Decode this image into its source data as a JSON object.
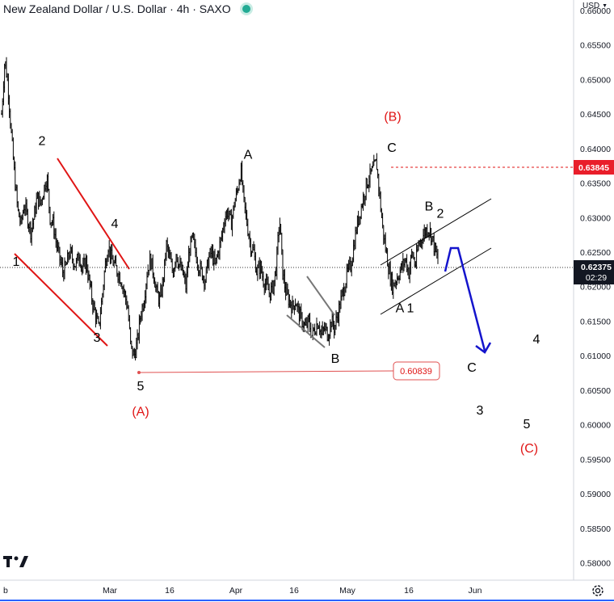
{
  "header": {
    "title": "New Zealand Dollar / U.S. Dollar · 4h · SAXO",
    "currency": "USD"
  },
  "price_labels": {
    "last_price": "0.62375",
    "countdown": "02:29",
    "high_line": "0.63845",
    "low_box": "0.60839"
  },
  "colors": {
    "red": "#e01515",
    "blue": "#1414cc",
    "candle": "#000000",
    "badge_red": "#e91e2a",
    "last_price_bg": "#131722"
  },
  "chart_data": {
    "type": "line",
    "x_ticks": [
      "b",
      "Mar",
      "16",
      "Apr",
      "16",
      "May",
      "16",
      "Jun"
    ],
    "y_ticks": [
      "0.66000",
      "0.65500",
      "0.65000",
      "0.64500",
      "0.64000",
      "0.63500",
      "0.63000",
      "0.62500",
      "0.62000",
      "0.61500",
      "0.61000",
      "0.60500",
      "0.60000",
      "0.59500",
      "0.59000",
      "0.58500",
      "0.58000"
    ],
    "ylim": [
      0.5775,
      0.6615
    ],
    "xlim": [
      0,
      710
    ],
    "series": [
      {
        "values_x": [
          2,
          6,
          10,
          14,
          18,
          22,
          26,
          30,
          34,
          38,
          42,
          46,
          50,
          54,
          58,
          62,
          66,
          70,
          74,
          78,
          82,
          86,
          90,
          94,
          98,
          102,
          106,
          110,
          114,
          118,
          122,
          126,
          130,
          134,
          138,
          142,
          146,
          150,
          154,
          158,
          162,
          166,
          170,
          174,
          178,
          182,
          186,
          190,
          194,
          198,
          202,
          206,
          210,
          214,
          218,
          222,
          226,
          230,
          234,
          238,
          242,
          246,
          250,
          254,
          258,
          262,
          266,
          270,
          274,
          278,
          282,
          286,
          290,
          294,
          298,
          302,
          306,
          310,
          314,
          318,
          322,
          326,
          330,
          334,
          338,
          342,
          346,
          350,
          354,
          358,
          362,
          366,
          370,
          374,
          378,
          382,
          386,
          390,
          394,
          398,
          402,
          406,
          410,
          414,
          418,
          422,
          426,
          430,
          434,
          438,
          442,
          446,
          450,
          454,
          458,
          462,
          466,
          470,
          474,
          478,
          482,
          486,
          490,
          494,
          498,
          502,
          506,
          510,
          514,
          518,
          522,
          526,
          530,
          534,
          538,
          542
        ],
        "values": [
          0.645,
          0.653,
          0.649,
          0.642,
          0.636,
          0.631,
          0.629,
          0.632,
          0.63,
          0.628,
          0.63,
          0.633,
          0.632,
          0.634,
          0.636,
          0.63,
          0.629,
          0.626,
          0.624,
          0.622,
          0.623,
          0.625,
          0.624,
          0.623,
          0.625,
          0.622,
          0.624,
          0.621,
          0.618,
          0.616,
          0.614,
          0.618,
          0.623,
          0.626,
          0.624,
          0.623,
          0.622,
          0.621,
          0.619,
          0.617,
          0.611,
          0.61,
          0.612,
          0.616,
          0.618,
          0.622,
          0.624,
          0.622,
          0.619,
          0.618,
          0.621,
          0.626,
          0.624,
          0.622,
          0.625,
          0.623,
          0.622,
          0.62,
          0.625,
          0.627,
          0.625,
          0.623,
          0.622,
          0.621,
          0.624,
          0.625,
          0.623,
          0.625,
          0.627,
          0.63,
          0.631,
          0.629,
          0.632,
          0.634,
          0.637,
          0.632,
          0.629,
          0.626,
          0.625,
          0.622,
          0.623,
          0.621,
          0.62,
          0.619,
          0.62,
          0.623,
          0.63,
          0.622,
          0.619,
          0.618,
          0.617,
          0.618,
          0.616,
          0.615,
          0.614,
          0.615,
          0.613,
          0.614,
          0.615,
          0.613,
          0.614,
          0.613,
          0.615,
          0.614,
          0.616,
          0.618,
          0.62,
          0.622,
          0.623,
          0.626,
          0.629,
          0.631,
          0.633,
          0.635,
          0.636,
          0.637,
          0.638,
          0.633,
          0.628,
          0.625,
          0.622,
          0.62,
          0.621,
          0.622,
          0.623,
          0.624,
          0.622,
          0.625,
          0.623,
          0.626,
          0.627,
          0.628,
          0.6285,
          0.6275,
          0.6255,
          0.6237
        ],
        "name": ""
      }
    ],
    "annotations": [
      {
        "text": "1",
        "color": "black",
        "x": 20,
        "y": 0.623
      },
      {
        "text": "2",
        "color": "black",
        "x": 52,
        "y": 0.6405
      },
      {
        "text": "3",
        "color": "black",
        "x": 120,
        "y": 0.612
      },
      {
        "text": "4",
        "color": "black",
        "x": 142,
        "y": 0.6285
      },
      {
        "text": "5",
        "color": "black",
        "x": 174,
        "y": 0.605
      },
      {
        "text": "(A)",
        "color": "red",
        "x": 174,
        "y": 0.6013
      },
      {
        "text": "A",
        "color": "black",
        "x": 307,
        "y": 0.6385
      },
      {
        "text": "B",
        "color": "black",
        "x": 415,
        "y": 0.609
      },
      {
        "text": "(B)",
        "color": "red",
        "x": 486,
        "y": 0.644
      },
      {
        "text": "C",
        "color": "black",
        "x": 485,
        "y": 0.6395
      },
      {
        "text": "B",
        "color": "black",
        "x": 531,
        "y": 0.631
      },
      {
        "text": "2",
        "color": "black",
        "x": 545,
        "y": 0.63
      },
      {
        "text": "A",
        "color": "black",
        "x": 495,
        "y": 0.6163
      },
      {
        "text": "1",
        "color": "black",
        "x": 508,
        "y": 0.6163
      },
      {
        "text": "C",
        "color": "black",
        "x": 584,
        "y": 0.6077
      },
      {
        "text": "4",
        "color": "black",
        "x": 664,
        "y": 0.6118
      },
      {
        "text": "3",
        "color": "black",
        "x": 594,
        "y": 0.6015
      },
      {
        "text": "5",
        "color": "black",
        "x": 652,
        "y": 0.5995
      },
      {
        "text": "(C)",
        "color": "red",
        "x": 655,
        "y": 0.596
      }
    ]
  }
}
